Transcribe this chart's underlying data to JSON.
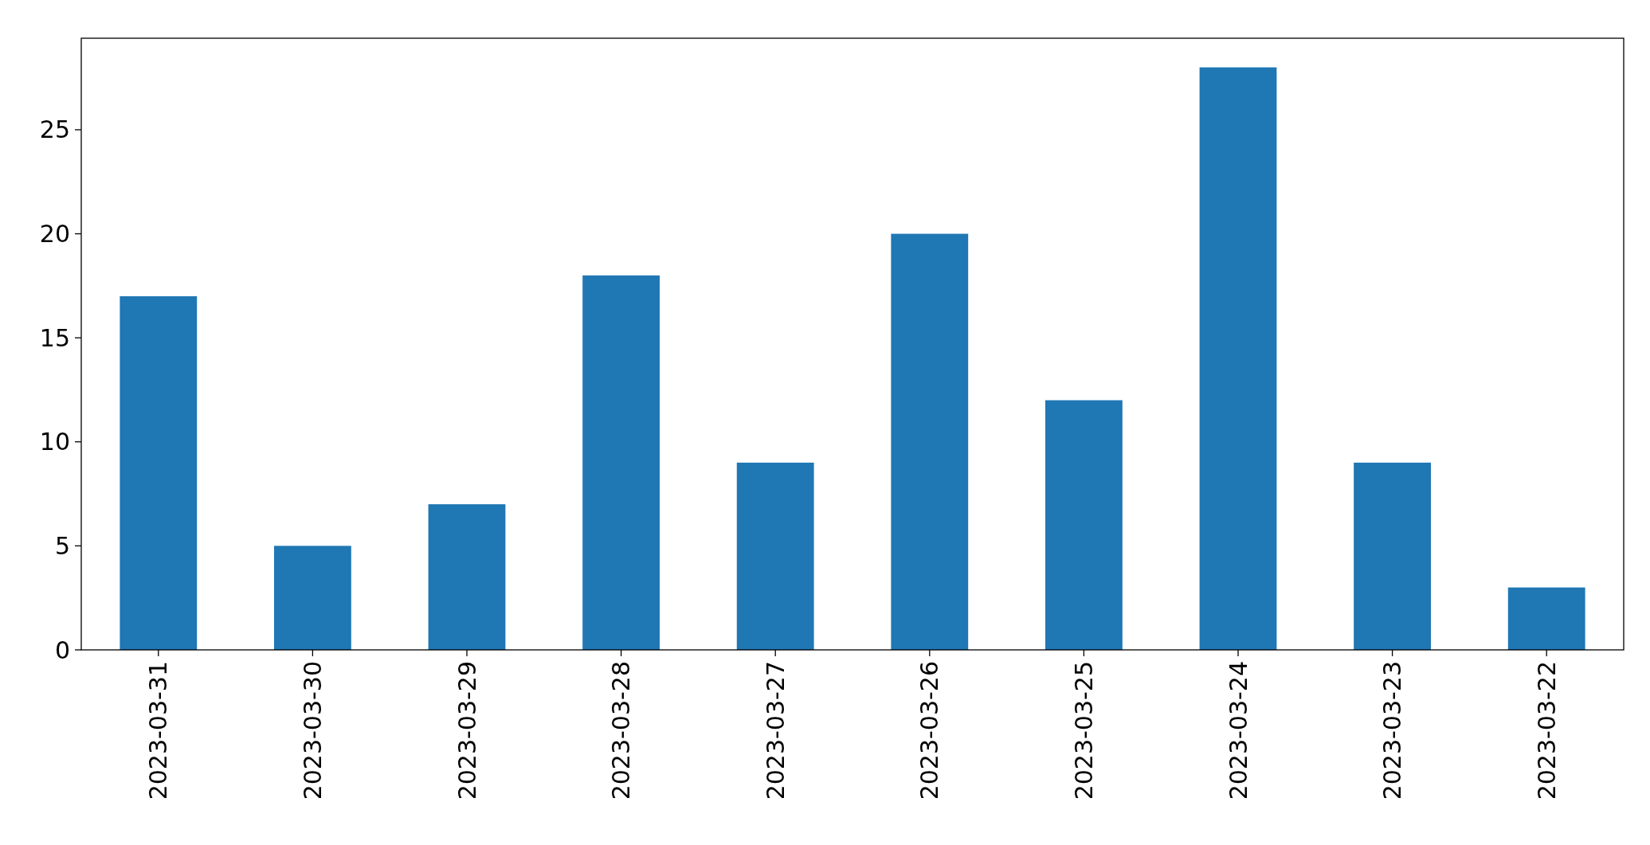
{
  "chart_data": {
    "type": "bar",
    "categories": [
      "2023-03-31",
      "2023-03-30",
      "2023-03-29",
      "2023-03-28",
      "2023-03-27",
      "2023-03-26",
      "2023-03-25",
      "2023-03-24",
      "2023-03-23",
      "2023-03-22"
    ],
    "values": [
      17,
      5,
      7,
      18,
      9,
      20,
      12,
      28,
      9,
      3
    ],
    "color": "#1f77b4",
    "ylim": [
      0,
      29.4
    ],
    "yticks": [
      0,
      5,
      10,
      15,
      20,
      25
    ]
  }
}
